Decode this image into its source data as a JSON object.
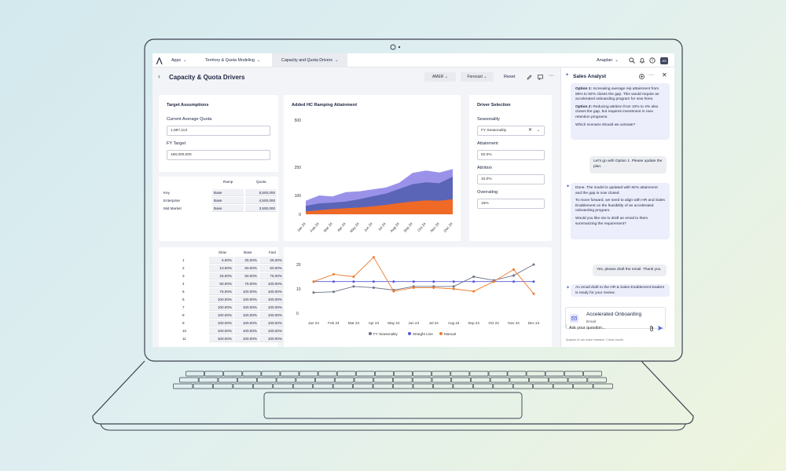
{
  "topbar": {
    "logo": "⋀",
    "apps": "Apps",
    "app_model": "Territory & Quota Modeling",
    "page_tab": "Capacity and Quota Drivers",
    "workspace": "Anaplan",
    "avatar": "JG"
  },
  "header": {
    "title": "Capacity & Quota Drivers",
    "filter_region": "AMER",
    "filter_version": "Forecast",
    "reset": "Reset"
  },
  "target": {
    "title": "Target Assumptions",
    "quota_label": "Current Average Quota",
    "quota_value": "1,987,113",
    "fy_label": "FY Target",
    "fy_value": "166,000,000"
  },
  "segments": {
    "col_ramp": "Ramp",
    "col_quota": "Quota",
    "rows": [
      {
        "name": "Key",
        "ramp": "Base",
        "quota": "5,500,000"
      },
      {
        "name": "Enterprise",
        "ramp": "Base",
        "quota": "4,500,000"
      },
      {
        "name": "Mid Market",
        "ramp": "Base",
        "quota": "3,500,000"
      }
    ]
  },
  "ramp": {
    "cols": [
      "Slow",
      "Base",
      "Fast"
    ],
    "rows": [
      {
        "n": "1",
        "v": [
          "5.00%",
          "25.00%",
          "25.00%"
        ]
      },
      {
        "n": "2",
        "v": [
          "10.00%",
          "50.00%",
          "50.00%"
        ]
      },
      {
        "n": "3",
        "v": [
          "25.00%",
          "50.00%",
          "75.00%"
        ]
      },
      {
        "n": "4",
        "v": [
          "50.00%",
          "75.00%",
          "100.00%"
        ]
      },
      {
        "n": "5",
        "v": [
          "75.00%",
          "100.00%",
          "100.00%"
        ]
      },
      {
        "n": "6",
        "v": [
          "100.00%",
          "100.00%",
          "100.00%"
        ]
      },
      {
        "n": "7",
        "v": [
          "100.00%",
          "100.00%",
          "100.00%"
        ]
      },
      {
        "n": "8",
        "v": [
          "100.00%",
          "100.00%",
          "100.00%"
        ]
      },
      {
        "n": "9",
        "v": [
          "100.00%",
          "100.00%",
          "100.00%"
        ]
      },
      {
        "n": "10",
        "v": [
          "100.00%",
          "100.00%",
          "100.00%"
        ]
      },
      {
        "n": "11",
        "v": [
          "100.00%",
          "100.00%",
          "100.00%"
        ]
      }
    ]
  },
  "drivers": {
    "title": "Driver Selection",
    "seasonality_label": "Seasonality",
    "seasonality_value": "FY Seasonality",
    "attainment_label": "Attainment",
    "attainment_value": "92.0%",
    "attrition_label": "Attrition",
    "attrition_value": "10.0%",
    "overrating_label": "Overrating",
    "overrating_value": "15%"
  },
  "chart_data": [
    {
      "type": "area",
      "title": "Added HC Ramping Attainment",
      "x": [
        "Jan 24",
        "Feb 24",
        "Mar 24",
        "Apr 24",
        "May 24",
        "Jun 24",
        "Jul 24",
        "Aug 24",
        "Sep 24",
        "Oct 24",
        "Nov 24",
        "Dec 24"
      ],
      "ylim": [
        0,
        500
      ],
      "yticks": [
        0,
        100,
        250,
        500
      ],
      "series": [
        {
          "values": [
            72,
            100,
            95,
            118,
            122,
            132,
            142,
            168,
            220,
            232,
            222,
            240
          ]
        },
        {
          "values": [
            45,
            58,
            62,
            68,
            80,
            96,
            110,
            135,
            160,
            170,
            165,
            200
          ]
        },
        {
          "values": [
            15,
            22,
            28,
            32,
            36,
            42,
            50,
            60,
            68,
            74,
            72,
            80
          ]
        }
      ],
      "colors": [
        "#9a92e9",
        "#5a65b8",
        "#ee6a26"
      ]
    },
    {
      "type": "line",
      "x": [
        "Jan 24",
        "Feb 24",
        "Mar 24",
        "Apr 24",
        "May 24",
        "Jun 24",
        "Jul 24",
        "Aug 24",
        "Sep 24",
        "Oct 24",
        "Nov 24",
        "Dec 24"
      ],
      "ylim": [
        0,
        20
      ],
      "yticks": [
        0,
        10,
        20
      ],
      "series": [
        {
          "name": "FY Seasonality",
          "color": "#6b7285",
          "values": [
            8.5,
            8.8,
            11,
            10.5,
            9.5,
            11,
            11,
            11,
            15,
            13.5,
            15.5,
            20
          ]
        },
        {
          "name": "Straight Line",
          "color": "#5457d6",
          "values": [
            13,
            13,
            13,
            13,
            13,
            13,
            13,
            13,
            13,
            13,
            13,
            13
          ]
        },
        {
          "name": "Manual",
          "color": "#f07a2a",
          "values": [
            13,
            16,
            15,
            23,
            9,
            10.5,
            10.5,
            10,
            9,
            13,
            18,
            8
          ]
        }
      ]
    }
  ],
  "analyst": {
    "title": "Sales Analyst",
    "m1_opt1_bold": "Option 1:",
    "m1_opt1": "Increasing average rep attainment from 85% to 92% closes the gap. This would require an accelerated onboarding program for new hires.",
    "m1_opt2_bold": "Option 2:",
    "m1_opt2": "Reducing attrition from 10% to 4% also closes the gap, but requires investment in new retention programs.",
    "m1_q": "Which scenario should we activate?",
    "u1": "Let's go with Option 1. Please update the plan.",
    "m2_a": "Done. The model is updated with 92% attainment and the gap is now closed.",
    "m2_b": "To move forward, we need to align with HR and Sales Enablement on the feasibility of an accelerated onboarding program.",
    "m2_c": "Would you like me to draft an email to them summarizing the requirement?",
    "u2": "Yes, please draft the email. Thank you.",
    "m3": "An email draft to the HR & Sales Enablement leaders is ready for your review.",
    "card_title": "Accelerated Onboarding",
    "card_sub": "Email",
    "input_placeholder": "Ask your question...",
    "disclaimer": "Anaplan AI can make mistakes. Check results."
  }
}
